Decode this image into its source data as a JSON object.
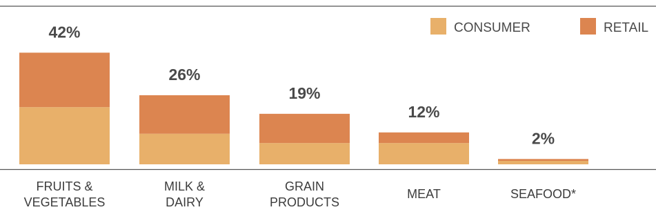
{
  "chart_data": {
    "type": "bar",
    "stacked": true,
    "categories": [
      [
        "FRUITS &",
        "VEGETABLES"
      ],
      [
        "MILK &",
        "DAIRY"
      ],
      [
        "GRAIN",
        "PRODUCTS"
      ],
      [
        "MEAT"
      ],
      [
        "SEAFOOD*"
      ]
    ],
    "totals": [
      "42%",
      "26%",
      "19%",
      "12%",
      "2%"
    ],
    "series": [
      {
        "name": "CONSUMER",
        "color": "#e8b06a",
        "values": [
          21.5,
          11.5,
          8,
          8,
          1.3
        ]
      },
      {
        "name": "RETAIL",
        "color": "#dc8550",
        "values": [
          20.5,
          14.5,
          11,
          4,
          0.7
        ]
      }
    ],
    "legend_position": "top-right",
    "grid": false
  }
}
